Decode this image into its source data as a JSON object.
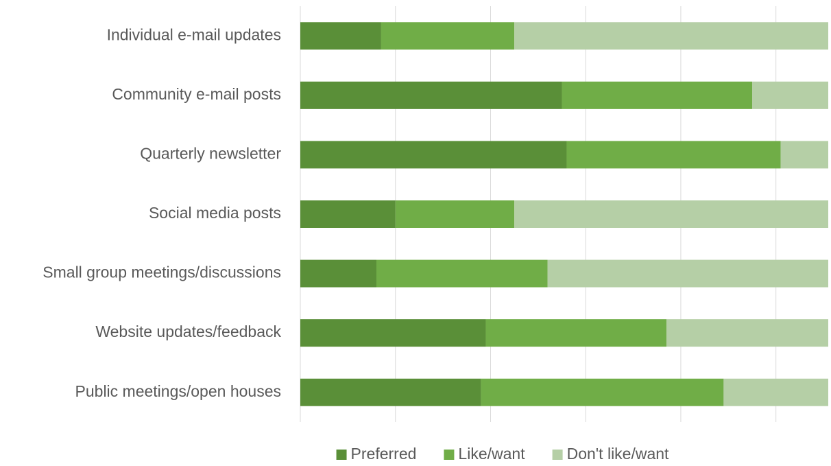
{
  "chart_data": {
    "type": "stacked_barh",
    "categories": [
      "Individual e-mail updates",
      "Community e-mail posts",
      "Quarterly newsletter",
      "Social media posts",
      "Small group meetings/discussions",
      "Website updates/feedback",
      "Public meetings/open houses"
    ],
    "series": [
      {
        "name": "Preferred",
        "color": "#5a8f38",
        "values": [
          17,
          55,
          56,
          20,
          16,
          39,
          38
        ]
      },
      {
        "name": "Like/want",
        "color": "#70ad47",
        "values": [
          28,
          40,
          45,
          25,
          36,
          38,
          51
        ]
      },
      {
        "name": "Don't like/want",
        "color": "#b5cfa6",
        "values": [
          66,
          16,
          10,
          66,
          59,
          34,
          22
        ]
      }
    ],
    "xlim": [
      0,
      111
    ],
    "xticks": [
      0,
      20,
      40,
      60,
      80,
      100
    ],
    "grid": true,
    "legend": "bottom"
  }
}
